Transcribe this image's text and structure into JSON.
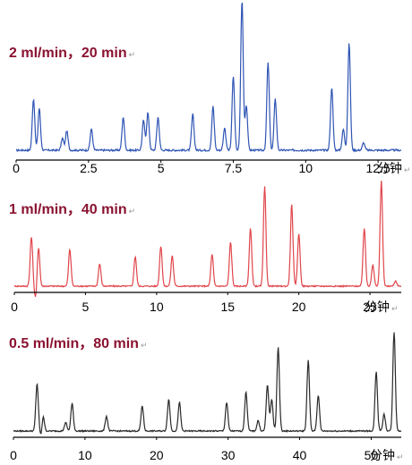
{
  "chart_data": [
    {
      "type": "line",
      "title": "2 ml/min，20 min",
      "title_mark": "↵",
      "unit": "分钟",
      "unit_mark": "↵",
      "color": "#2f55b4",
      "xlim": [
        0,
        13.3
      ],
      "xticks": [
        0,
        2.5,
        5,
        7.5,
        10,
        12.5
      ],
      "xtick_labels": [
        "0",
        "2.5",
        "5",
        "7.5",
        "10",
        "12.5"
      ],
      "peaks": [
        {
          "x": 0.6,
          "h": 0.34
        },
        {
          "x": 0.8,
          "h": 0.28
        },
        {
          "x": 1.6,
          "h": 0.08
        },
        {
          "x": 1.75,
          "h": 0.13
        },
        {
          "x": 2.6,
          "h": 0.14
        },
        {
          "x": 3.7,
          "h": 0.22
        },
        {
          "x": 4.4,
          "h": 0.2
        },
        {
          "x": 4.55,
          "h": 0.25
        },
        {
          "x": 4.9,
          "h": 0.22
        },
        {
          "x": 6.1,
          "h": 0.24
        },
        {
          "x": 6.8,
          "h": 0.29
        },
        {
          "x": 7.2,
          "h": 0.15
        },
        {
          "x": 7.5,
          "h": 0.49
        },
        {
          "x": 7.8,
          "h": 1.0
        },
        {
          "x": 7.95,
          "h": 0.3
        },
        {
          "x": 8.7,
          "h": 0.58
        },
        {
          "x": 8.95,
          "h": 0.34
        },
        {
          "x": 10.9,
          "h": 0.42
        },
        {
          "x": 11.3,
          "h": 0.14
        },
        {
          "x": 11.5,
          "h": 0.71
        },
        {
          "x": 12.0,
          "h": 0.05
        }
      ]
    },
    {
      "type": "line",
      "title": "1 ml/min，40 min",
      "title_mark": "↵",
      "unit": "分钟",
      "unit_mark": "↵",
      "color": "#e0464b",
      "xlim": [
        0,
        27.2
      ],
      "xticks": [
        0,
        5,
        10,
        15,
        20,
        25
      ],
      "xtick_labels": [
        "0",
        "5",
        "10",
        "15",
        "20",
        "25"
      ],
      "peaks": [
        {
          "x": 1.2,
          "h": 0.47
        },
        {
          "x": 1.7,
          "h": 0.37
        },
        {
          "x": 3.9,
          "h": 0.35
        },
        {
          "x": 6.0,
          "h": 0.21
        },
        {
          "x": 8.5,
          "h": 0.28
        },
        {
          "x": 10.3,
          "h": 0.38
        },
        {
          "x": 11.1,
          "h": 0.29
        },
        {
          "x": 13.9,
          "h": 0.3
        },
        {
          "x": 15.2,
          "h": 0.42
        },
        {
          "x": 16.6,
          "h": 0.55
        },
        {
          "x": 17.6,
          "h": 0.94
        },
        {
          "x": 19.5,
          "h": 0.78
        },
        {
          "x": 20.0,
          "h": 0.5
        },
        {
          "x": 24.6,
          "h": 0.55
        },
        {
          "x": 25.2,
          "h": 0.2
        },
        {
          "x": 25.8,
          "h": 1.0
        },
        {
          "x": 26.8,
          "h": 0.05
        }
      ],
      "dips": [
        {
          "x": 1.5,
          "h": -0.12
        }
      ]
    },
    {
      "type": "line",
      "title": "0.5 ml/min，80 min",
      "title_mark": "↵",
      "unit": "分钟",
      "unit_mark": "↵",
      "color": "#2a2a2a",
      "xlim": [
        0,
        54.2
      ],
      "xticks": [
        0,
        10,
        20,
        30,
        40,
        50
      ],
      "xtick_labels": [
        "0",
        "10",
        "20",
        "30",
        "40",
        "50"
      ],
      "peaks": [
        {
          "x": 3.3,
          "h": 0.45
        },
        {
          "x": 4.1,
          "h": 0.27
        },
        {
          "x": 7.3,
          "h": 0.08
        },
        {
          "x": 8.2,
          "h": 0.26
        },
        {
          "x": 13.0,
          "h": 0.14
        },
        {
          "x": 18.0,
          "h": 0.24
        },
        {
          "x": 21.7,
          "h": 0.3
        },
        {
          "x": 23.2,
          "h": 0.27
        },
        {
          "x": 29.8,
          "h": 0.27
        },
        {
          "x": 32.5,
          "h": 0.37
        },
        {
          "x": 34.2,
          "h": 0.1
        },
        {
          "x": 35.5,
          "h": 0.44
        },
        {
          "x": 36.1,
          "h": 0.3
        },
        {
          "x": 37.0,
          "h": 0.8
        },
        {
          "x": 41.2,
          "h": 0.67
        },
        {
          "x": 42.6,
          "h": 0.34
        },
        {
          "x": 50.7,
          "h": 0.56
        },
        {
          "x": 51.8,
          "h": 0.16
        },
        {
          "x": 53.2,
          "h": 0.94
        }
      ],
      "dips": [
        {
          "x": 4.0,
          "h": -0.18
        }
      ]
    }
  ]
}
